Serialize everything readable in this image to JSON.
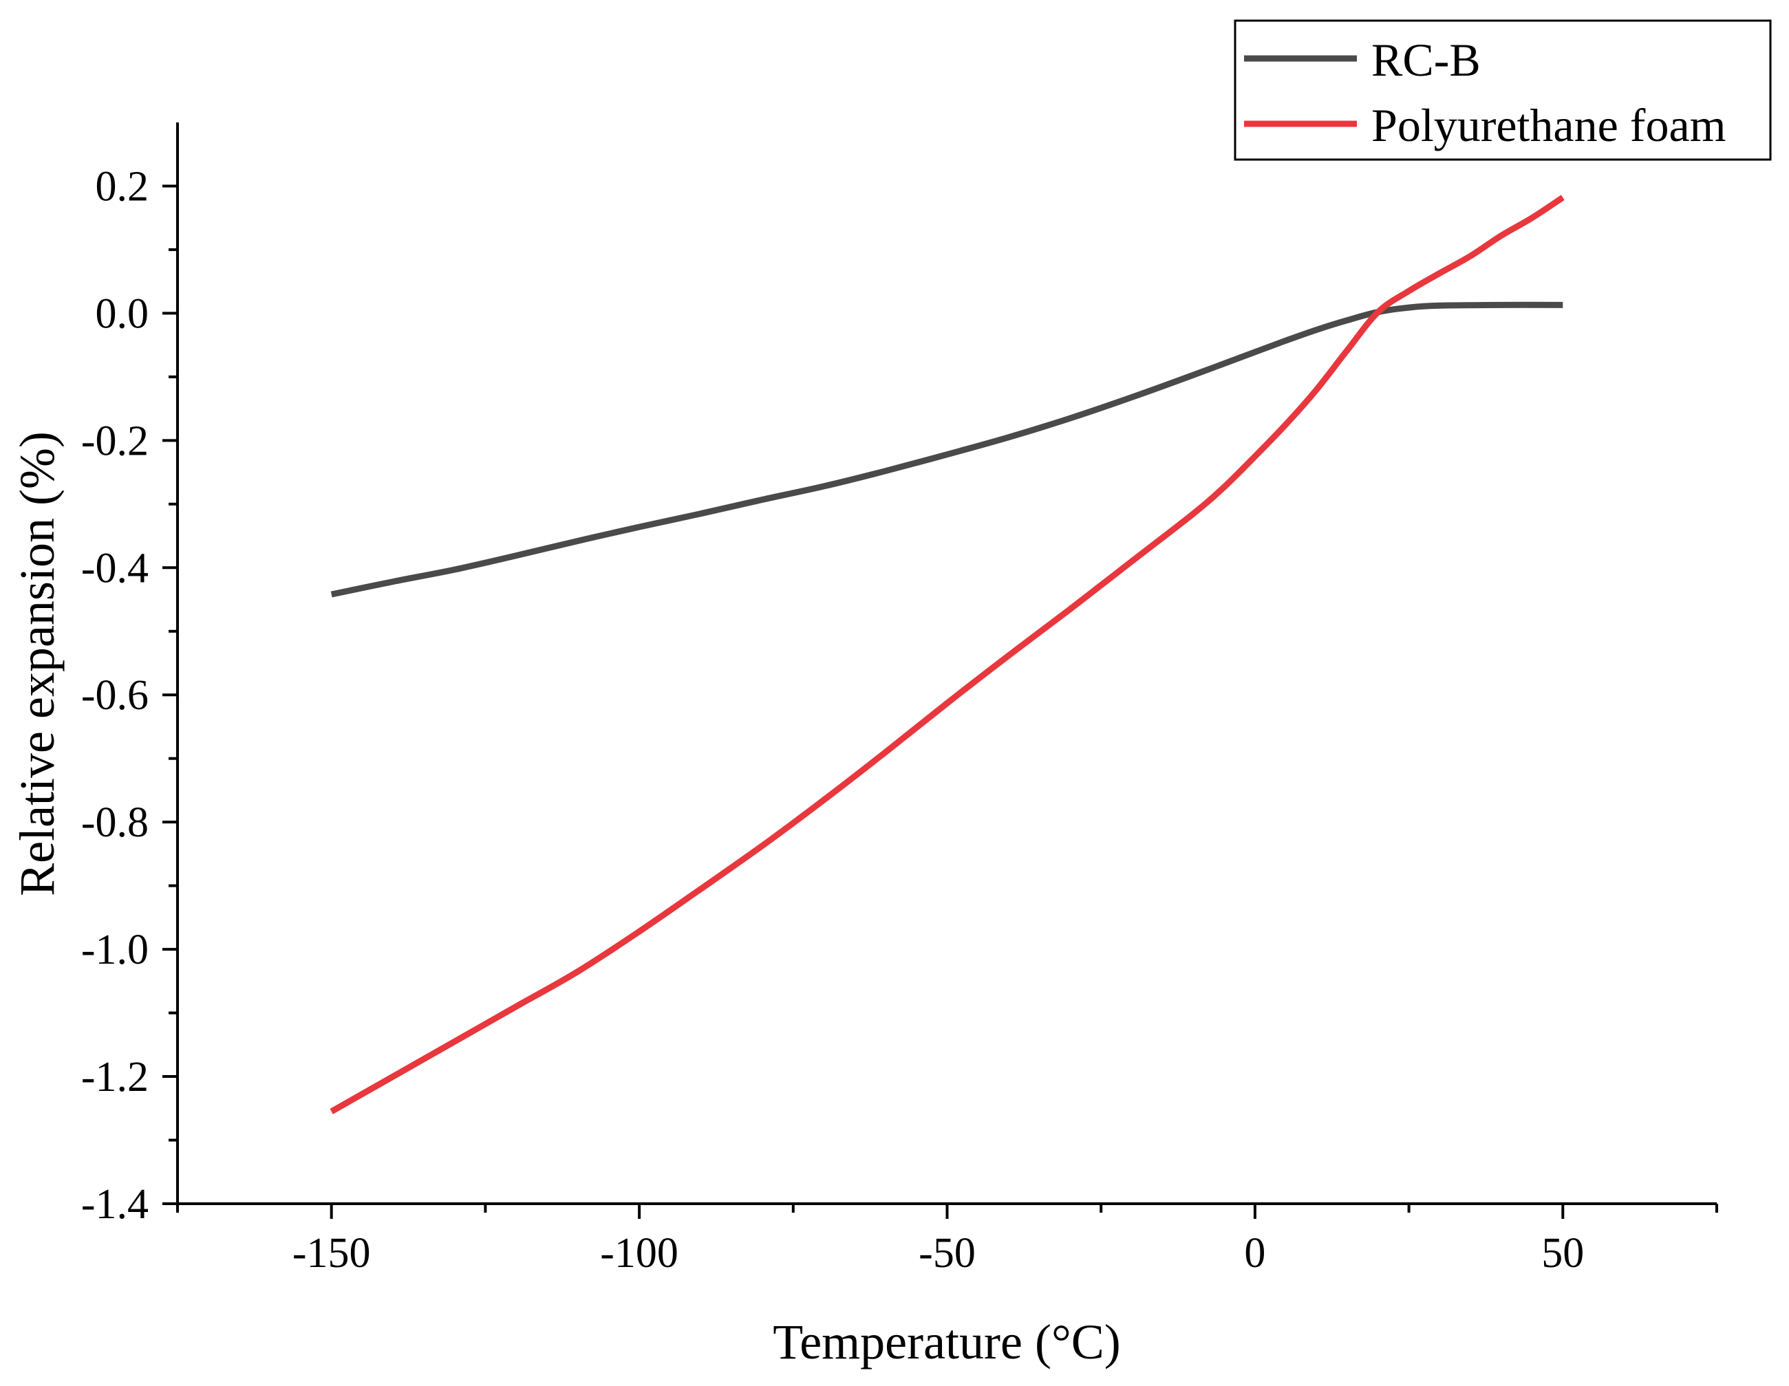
{
  "chart_data": {
    "type": "line",
    "title": "",
    "xlabel": "Temperature (°C)",
    "ylabel": "Relative expansion (%)",
    "xlim": [
      -175,
      75
    ],
    "ylim": [
      -1.4,
      0.3
    ],
    "x_ticks": [
      -150,
      -100,
      -50,
      0,
      50
    ],
    "x_tick_labels": [
      "-150",
      "-100",
      "-50",
      "0",
      "50"
    ],
    "y_ticks": [
      -1.4,
      -1.2,
      -1.0,
      -0.8,
      -0.6,
      -0.4,
      -0.2,
      0.0,
      0.2
    ],
    "y_tick_labels": [
      "-1.4",
      "-1.2",
      "-1.0",
      "-0.8",
      "-0.6",
      "-0.4",
      "-0.2",
      "0.0",
      "0.2"
    ],
    "grid": false,
    "legend_position": "top-right",
    "series": [
      {
        "name": "RC-B",
        "color": "#4a4a4a",
        "points": [
          [
            -150,
            -0.442
          ],
          [
            -140,
            -0.422
          ],
          [
            -130,
            -0.403
          ],
          [
            -120,
            -0.381
          ],
          [
            -110,
            -0.358
          ],
          [
            -100,
            -0.336
          ],
          [
            -90,
            -0.315
          ],
          [
            -80,
            -0.293
          ],
          [
            -70,
            -0.272
          ],
          [
            -60,
            -0.248
          ],
          [
            -50,
            -0.222
          ],
          [
            -40,
            -0.195
          ],
          [
            -30,
            -0.165
          ],
          [
            -20,
            -0.132
          ],
          [
            -10,
            -0.097
          ],
          [
            0,
            -0.061
          ],
          [
            5,
            -0.043
          ],
          [
            10,
            -0.026
          ],
          [
            15,
            -0.011
          ],
          [
            20,
            0.002
          ],
          [
            25,
            0.009
          ],
          [
            30,
            0.012
          ],
          [
            40,
            0.013
          ],
          [
            50,
            0.013
          ]
        ]
      },
      {
        "name": "Polyurethane foam",
        "color": "#e8373d",
        "points": [
          [
            -150,
            -1.255
          ],
          [
            -140,
            -1.2
          ],
          [
            -130,
            -1.145
          ],
          [
            -120,
            -1.09
          ],
          [
            -110,
            -1.035
          ],
          [
            -100,
            -0.972
          ],
          [
            -90,
            -0.905
          ],
          [
            -80,
            -0.837
          ],
          [
            -70,
            -0.765
          ],
          [
            -60,
            -0.69
          ],
          [
            -50,
            -0.613
          ],
          [
            -40,
            -0.538
          ],
          [
            -30,
            -0.465
          ],
          [
            -20,
            -0.39
          ],
          [
            -10,
            -0.315
          ],
          [
            -5,
            -0.273
          ],
          [
            0,
            -0.225
          ],
          [
            5,
            -0.175
          ],
          [
            10,
            -0.12
          ],
          [
            15,
            -0.058
          ],
          [
            20,
            0.002
          ],
          [
            25,
            0.035
          ],
          [
            30,
            0.063
          ],
          [
            35,
            0.09
          ],
          [
            40,
            0.122
          ],
          [
            45,
            0.15
          ],
          [
            50,
            0.182
          ]
        ]
      }
    ]
  }
}
